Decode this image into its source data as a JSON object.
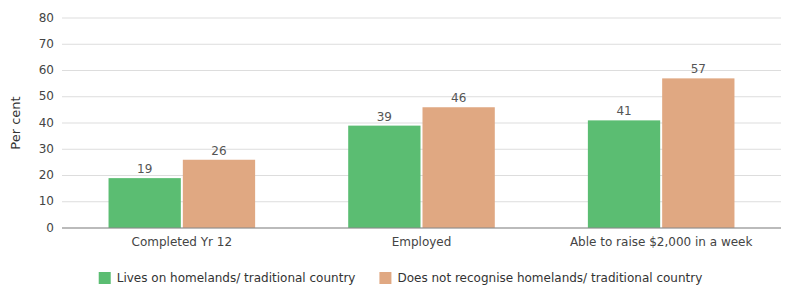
{
  "chart_data": {
    "type": "bar",
    "categories": [
      "Completed Yr 12",
      "Employed",
      "Able to raise $2,000 in a week"
    ],
    "series": [
      {
        "name": "Lives on homelands/ traditional country",
        "color": "#5BBD72",
        "values": [
          19,
          39,
          41
        ]
      },
      {
        "name": "Does not recognise homelands/ traditional country",
        "color": "#E0A882",
        "values": [
          26,
          46,
          57
        ]
      }
    ],
    "ylabel": "Per cent",
    "ylim": [
      0,
      80
    ],
    "yticks": [
      0,
      10,
      20,
      30,
      40,
      50,
      60,
      70,
      80
    ],
    "grid": true,
    "data_labels": true,
    "legend": "bottom"
  }
}
